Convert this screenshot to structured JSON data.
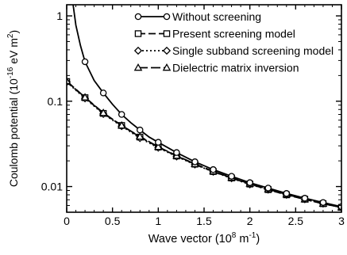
{
  "chart_data": {
    "type": "line",
    "xlabel": "Wave vector (10",
    "xlabel_exp": "8",
    "xlabel_unit": " m",
    "xlabel_unit_exp": "-1",
    "xlabel_close": ")",
    "ylabel": "Coulomb potential (10",
    "ylabel_exp": "-16",
    "ylabel_unit": " eV m",
    "ylabel_unit_exp": "2",
    "ylabel_close": ")",
    "xlim": [
      0,
      3
    ],
    "ylim": [
      0.005,
      1.35
    ],
    "yscale": "log",
    "x_ticks": [
      0,
      0.5,
      1,
      1.5,
      2,
      2.5,
      3
    ],
    "x_tick_labels": [
      "0",
      "0.5",
      "1",
      "1.5",
      "2",
      "2.5",
      "3"
    ],
    "y_ticks": [
      0.01,
      0.1,
      1
    ],
    "y_tick_labels": [
      "0.01",
      "0.1",
      "1"
    ],
    "grid": false,
    "legend_position": "top-right",
    "series": [
      {
        "name": "Without screening",
        "marker": "circle",
        "dash": "solid",
        "x": [
          0.2,
          0.4,
          0.6,
          0.8,
          1.0,
          1.2,
          1.4,
          1.6,
          1.8,
          2.0,
          2.2,
          2.4,
          2.6,
          2.8,
          3.0
        ],
        "y": [
          0.29,
          0.125,
          0.07,
          0.046,
          0.033,
          0.025,
          0.0195,
          0.0158,
          0.0132,
          0.0111,
          0.0096,
          0.0083,
          0.0073,
          0.0065,
          0.0058
        ],
        "curve_x": [
          0.07,
          0.1,
          0.15,
          0.2,
          0.3,
          0.4,
          0.5,
          0.6,
          0.7,
          0.8,
          0.9,
          1.0,
          1.2,
          1.4,
          1.6,
          1.8,
          2.0,
          2.2,
          2.4,
          2.6,
          2.8,
          3.0
        ],
        "curve_y": [
          1.35,
          0.78,
          0.45,
          0.29,
          0.175,
          0.125,
          0.092,
          0.07,
          0.056,
          0.046,
          0.038,
          0.033,
          0.025,
          0.0195,
          0.0158,
          0.0132,
          0.0111,
          0.0096,
          0.0083,
          0.0073,
          0.0065,
          0.0058
        ]
      },
      {
        "name": "Present screening model",
        "marker": "square",
        "dash": "dashed",
        "x": [
          0.0,
          0.2,
          0.4,
          0.6,
          0.8,
          1.0,
          1.2,
          1.4,
          1.6,
          1.8,
          2.0,
          2.2,
          2.4,
          2.6,
          2.8,
          3.0
        ],
        "y": [
          0.17,
          0.11,
          0.072,
          0.052,
          0.038,
          0.029,
          0.0228,
          0.0183,
          0.015,
          0.0126,
          0.0107,
          0.0092,
          0.008,
          0.0071,
          0.0063,
          0.0057
        ]
      },
      {
        "name": "Single subband screening model",
        "marker": "diamond",
        "dash": "dotted",
        "x": [
          0.0,
          0.2,
          0.4,
          0.6,
          0.8,
          1.0,
          1.2,
          1.4,
          1.6,
          1.8,
          2.0,
          2.2,
          2.4,
          2.6,
          2.8,
          3.0
        ],
        "y": [
          0.168,
          0.108,
          0.071,
          0.051,
          0.037,
          0.0285,
          0.0225,
          0.0181,
          0.0149,
          0.0125,
          0.0106,
          0.0092,
          0.008,
          0.0071,
          0.0063,
          0.0057
        ]
      },
      {
        "name": "Dielectric matrix inversion",
        "marker": "triangle",
        "dash": "longdash",
        "x": [
          0.0,
          0.2,
          0.4,
          0.6,
          0.8,
          1.0,
          1.2,
          1.4,
          1.6,
          1.8,
          2.0,
          2.2,
          2.4,
          2.6,
          2.8,
          3.0
        ],
        "y": [
          0.172,
          0.111,
          0.073,
          0.052,
          0.0385,
          0.0292,
          0.023,
          0.0184,
          0.0151,
          0.0127,
          0.0108,
          0.0093,
          0.0081,
          0.0071,
          0.0063,
          0.0057
        ]
      }
    ]
  }
}
